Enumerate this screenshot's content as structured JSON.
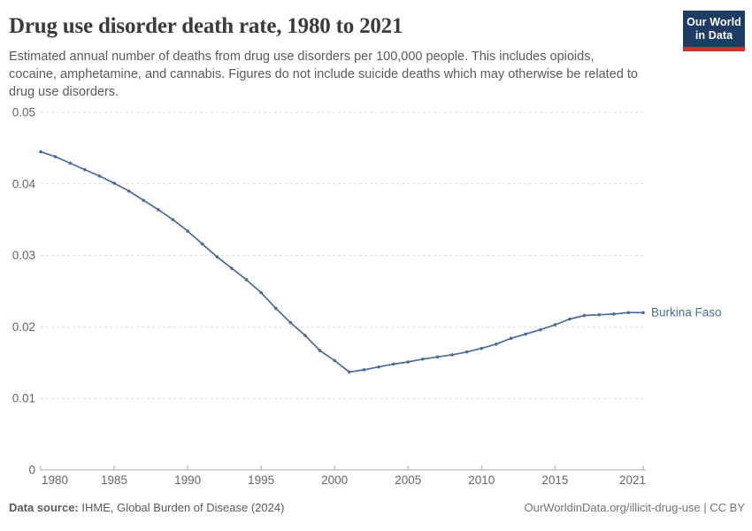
{
  "header": {
    "title": "Drug use disorder death rate, 1980 to 2021",
    "subtitle": "Estimated annual number of deaths from drug use disorders per 100,000 people. This includes opioids, cocaine, amphetamine, and cannabis. Figures do not include suicide deaths which may otherwise be related to drug use disorders.",
    "logo": {
      "line1": "Our World",
      "line2": "in Data"
    }
  },
  "chart_data": {
    "type": "line",
    "title": "Drug use disorder death rate, 1980 to 2021",
    "xlabel": "",
    "ylabel": "",
    "x": [
      1980,
      1981,
      1982,
      1983,
      1984,
      1985,
      1986,
      1987,
      1988,
      1989,
      1990,
      1991,
      1992,
      1993,
      1994,
      1995,
      1996,
      1997,
      1998,
      1999,
      2000,
      2001,
      2002,
      2003,
      2004,
      2005,
      2006,
      2007,
      2008,
      2009,
      2010,
      2011,
      2012,
      2013,
      2014,
      2015,
      2016,
      2017,
      2018,
      2019,
      2020,
      2021
    ],
    "series": [
      {
        "name": "Burkina Faso",
        "color": "#4c6a9c",
        "values": [
          0.0445,
          0.0438,
          0.0429,
          0.042,
          0.0411,
          0.0401,
          0.039,
          0.0377,
          0.0364,
          0.035,
          0.0334,
          0.0316,
          0.0298,
          0.0282,
          0.0266,
          0.0248,
          0.0226,
          0.0206,
          0.0188,
          0.0167,
          0.0153,
          0.0137,
          0.014,
          0.0144,
          0.0148,
          0.0151,
          0.0155,
          0.0158,
          0.0161,
          0.0165,
          0.017,
          0.0176,
          0.0184,
          0.019,
          0.0196,
          0.0203,
          0.0211,
          0.0216,
          0.0217,
          0.0218,
          0.022,
          0.022
        ]
      }
    ],
    "ylim": [
      0,
      0.05
    ],
    "yticks": [
      0,
      0.01,
      0.02,
      0.03,
      0.04,
      0.05
    ],
    "xticks": [
      1980,
      1985,
      1990,
      1995,
      2000,
      2005,
      2010,
      2015,
      2021
    ],
    "grid": true,
    "legend_position": "right-of-line-end"
  },
  "colors": {
    "line": "#4c6a9c",
    "grid": "#dcdcdc",
    "axis": "#a8a8a8",
    "axis_text": "#666666",
    "logo_bg": "#1d3d63",
    "logo_bar": "#c9352c"
  },
  "footer": {
    "source_label": "Data source:",
    "source_text": " IHME, Global Burden of Disease (2024)",
    "citation": "OurWorldinData.org/illicit-drug-use | CC BY"
  }
}
